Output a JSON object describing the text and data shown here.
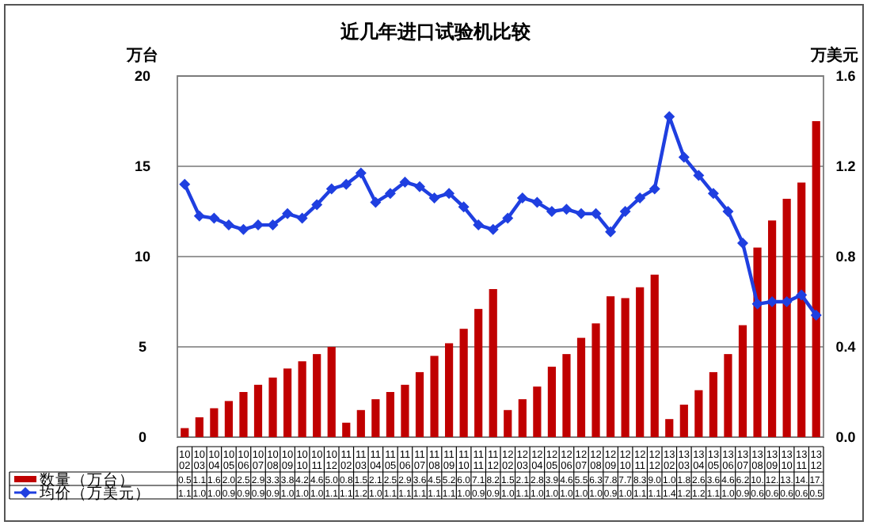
{
  "chart_data": {
    "type": "bar",
    "title": "近几年进口试验机比较",
    "ylabel": "万台",
    "y2label": "万美元",
    "categories": [
      "10\n02",
      "10\n03",
      "10\n04",
      "10\n05",
      "10\n06",
      "10\n07",
      "10\n08",
      "10\n09",
      "10\n10",
      "10\n11",
      "10\n12",
      "11\n02",
      "11\n03",
      "11\n04",
      "11\n05",
      "11\n06",
      "11\n07",
      "11\n08",
      "11\n09",
      "11\n10",
      "11\n11",
      "11\n12",
      "12\n02",
      "12\n03",
      "12\n04",
      "12\n05",
      "12\n06",
      "12\n07",
      "12\n08",
      "12\n09",
      "12\n10",
      "12\n11",
      "12\n12",
      "13\n02",
      "13\n03",
      "13\n04",
      "13\n05",
      "13\n06",
      "13\n07",
      "13\n08",
      "13\n09",
      "13\n10",
      "13\n11",
      "13\n12"
    ],
    "ylim": [
      0,
      20
    ],
    "yticks": [
      0,
      5,
      10,
      15,
      20
    ],
    "y2lim": [
      0,
      1.6
    ],
    "y2ticks": [
      {
        "value": 0,
        "label": "0.0"
      },
      0.4,
      0.8,
      1.2,
      1.6
    ],
    "grid": "y",
    "legend": "bottom",
    "series": [
      {
        "name": "数量（万台）",
        "color": "#c00000",
        "values": [
          0.5,
          1.1,
          1.6,
          2.0,
          2.5,
          2.9,
          3.3,
          3.8,
          4.2,
          4.6,
          5.0,
          0.8,
          1.5,
          2.1,
          2.5,
          2.9,
          3.6,
          4.5,
          5.2,
          6.0,
          7.1,
          8.2,
          1.5,
          2.1,
          2.8,
          3.9,
          4.6,
          5.5,
          6.3,
          7.8,
          7.7,
          8.3,
          9.0,
          1.0,
          1.8,
          2.6,
          3.6,
          4.6,
          6.2,
          10.5,
          12.0,
          13.2,
          14.1,
          17.5
        ],
        "value_labels": [
          "0.5",
          "1.1",
          "1.6",
          "2.0",
          "2.5",
          "2.9",
          "3.3",
          "3.8",
          "4.2",
          "4.6",
          "5.0",
          "0.8",
          "1.5",
          "2.1",
          "2.5",
          "2.9",
          "3.6",
          "4.5",
          "5.2",
          "6.0",
          "7.1",
          "8.2",
          "1.5",
          "2.1",
          "2.8",
          "3.9",
          "4.6",
          "5.5",
          "6.3",
          "7.8",
          "7.7",
          "8.3",
          "9.0",
          "1.0",
          "1.8",
          "2.6",
          "3.6",
          "4.6",
          "6.2",
          "10.",
          "12.",
          "13.",
          "14.",
          "17."
        ]
      },
      {
        "name": "均价（万美元）",
        "type": "line",
        "axis": "y2",
        "color": "#1f3fe0",
        "marker": "diamond",
        "values": [
          1.12,
          0.98,
          0.97,
          0.94,
          0.92,
          0.94,
          0.94,
          0.99,
          0.97,
          1.03,
          1.1,
          1.12,
          1.17,
          1.04,
          1.08,
          1.13,
          1.11,
          1.06,
          1.08,
          1.02,
          0.94,
          0.92,
          0.97,
          1.06,
          1.04,
          1.0,
          1.01,
          0.99,
          0.99,
          0.91,
          1.0,
          1.06,
          1.1,
          1.42,
          1.24,
          1.16,
          1.08,
          1.0,
          0.86,
          0.59,
          0.6,
          0.6,
          0.63,
          0.54
        ],
        "value_labels": [
          "1.1",
          "1.0",
          "1.0",
          "0.9",
          "0.9",
          "0.9",
          "0.9",
          "1.0",
          "1.0",
          "1.0",
          "1.1",
          "1.1",
          "1.2",
          "1.0",
          "1.1",
          "1.1",
          "1.1",
          "1.1",
          "1.1",
          "1.0",
          "0.9",
          "0.9",
          "1.0",
          "1.1",
          "1.0",
          "1.0",
          "1.0",
          "1.0",
          "1.0",
          "0.9",
          "1.0",
          "1.1",
          "1.1",
          "1.4",
          "1.2",
          "1.2",
          "1.1",
          "1.0",
          "0.9",
          "0.6",
          "0.6",
          "0.6",
          "0.6",
          "0.5"
        ]
      }
    ]
  }
}
